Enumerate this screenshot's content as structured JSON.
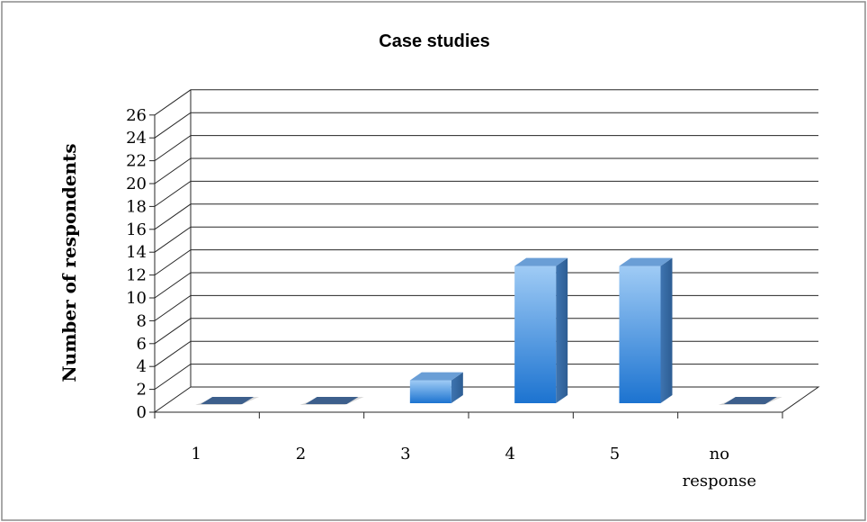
{
  "chart_data": {
    "type": "bar",
    "title": "Case studies",
    "xlabel": "",
    "ylabel": "Number of respondents",
    "categories": [
      "1",
      "2",
      "3",
      "4",
      "5",
      "no response"
    ],
    "values": [
      0,
      0,
      2,
      12,
      12,
      0
    ],
    "ylim": [
      0,
      26
    ],
    "ytick_step": 2,
    "grid": true,
    "legend": "none",
    "colors": {
      "bar_front_top": "#9fcbf5",
      "bar_front_bottom": "#1c73d0",
      "bar_side": "#2d5d93",
      "bar_top": "#6a9ed6",
      "zero_bar": "#3d5f8c"
    }
  }
}
